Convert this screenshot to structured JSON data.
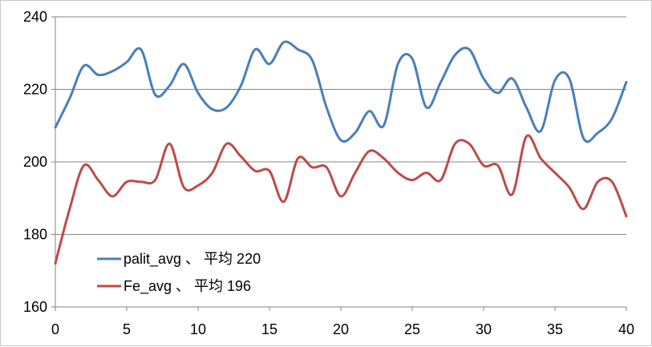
{
  "chart_data": {
    "type": "line",
    "title": "",
    "xlabel": "",
    "ylabel": "",
    "xlim": [
      0,
      40
    ],
    "ylim": [
      160,
      240
    ],
    "x_ticks": [
      0,
      5,
      10,
      15,
      20,
      25,
      30,
      35,
      40
    ],
    "y_ticks": [
      160,
      180,
      200,
      220,
      240
    ],
    "grid": "horizontal",
    "legend_position": "lower-left",
    "x": [
      0,
      1,
      2,
      3,
      4,
      5,
      6,
      7,
      8,
      9,
      10,
      11,
      12,
      13,
      14,
      15,
      16,
      17,
      18,
      19,
      20,
      21,
      22,
      23,
      24,
      25,
      26,
      27,
      28,
      29,
      30,
      31,
      32,
      33,
      34,
      35,
      36,
      37,
      38,
      39,
      40
    ],
    "series": [
      {
        "name": "palit_avg 、 平均 220",
        "color": "#4a7ebb",
        "values": [
          209.5,
          217.5,
          226.5,
          224,
          225,
          227.5,
          231,
          218.5,
          221,
          227,
          219,
          214.5,
          215,
          221,
          231,
          227,
          233,
          231,
          228,
          215,
          206,
          208,
          214,
          210,
          227,
          228.5,
          215,
          222,
          229.5,
          231,
          223,
          219,
          223,
          215,
          208.5,
          222.5,
          223,
          206.5,
          208,
          212,
          222
        ]
      },
      {
        "name": "Fe_avg 、 平均 196",
        "color": "#be4b48",
        "values": [
          172,
          187,
          199,
          195,
          190.5,
          194.5,
          194.5,
          195,
          205,
          193,
          193.5,
          197,
          205,
          201.5,
          197.5,
          197.5,
          189,
          201,
          198.5,
          198.5,
          190.5,
          197,
          203,
          201,
          197,
          195,
          197,
          195,
          205,
          205,
          199,
          199,
          191,
          207,
          201,
          197,
          193,
          187,
          194.5,
          194.5,
          185
        ]
      }
    ]
  }
}
